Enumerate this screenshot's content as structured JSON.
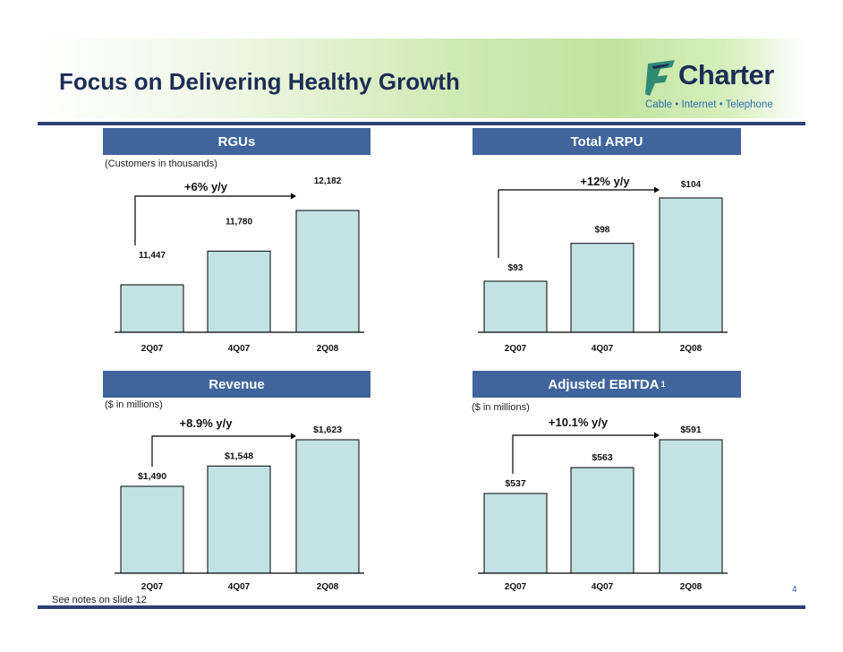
{
  "slide": {
    "title": "Focus on Delivering Healthy Growth",
    "footnote": "See notes on slide 12",
    "page_number": "4",
    "logo": {
      "name": "Charter",
      "tagline": "Cable • Internet • Telephone"
    }
  },
  "colors": {
    "bar_fill": "#c2e2e4",
    "panel_header": "#40659c",
    "title": "#1c2d55",
    "rule": "#2d3f74"
  },
  "chart_data": [
    {
      "type": "bar",
      "title": "RGUs",
      "subtitle": "(Customers in thousands)",
      "categories": [
        "2Q07",
        "4Q07",
        "2Q08"
      ],
      "values": [
        11447,
        11780,
        12182
      ],
      "value_labels": [
        "11,447",
        "11,780",
        "12,182"
      ],
      "annotation": "+6% y/y",
      "superscript": ""
    },
    {
      "type": "bar",
      "title": "Total ARPU",
      "subtitle": "",
      "categories": [
        "2Q07",
        "4Q07",
        "2Q08"
      ],
      "values": [
        93,
        98,
        104
      ],
      "value_labels": [
        "$93",
        "$98",
        "$104"
      ],
      "annotation": "+12% y/y",
      "superscript": ""
    },
    {
      "type": "bar",
      "title": "Revenue",
      "subtitle": "($ in millions)",
      "categories": [
        "2Q07",
        "4Q07",
        "2Q08"
      ],
      "values": [
        1490,
        1548,
        1623
      ],
      "value_labels": [
        "$1,490",
        "$1,548",
        "$1,623"
      ],
      "annotation": "+8.9% y/y",
      "superscript": ""
    },
    {
      "type": "bar",
      "title": "Adjusted EBITDA",
      "subtitle": "($ in millions)",
      "categories": [
        "2Q07",
        "4Q07",
        "2Q08"
      ],
      "values": [
        537,
        563,
        591
      ],
      "value_labels": [
        "$537",
        "$563",
        "$591"
      ],
      "annotation": "+10.1% y/y",
      "superscript": "1"
    }
  ]
}
